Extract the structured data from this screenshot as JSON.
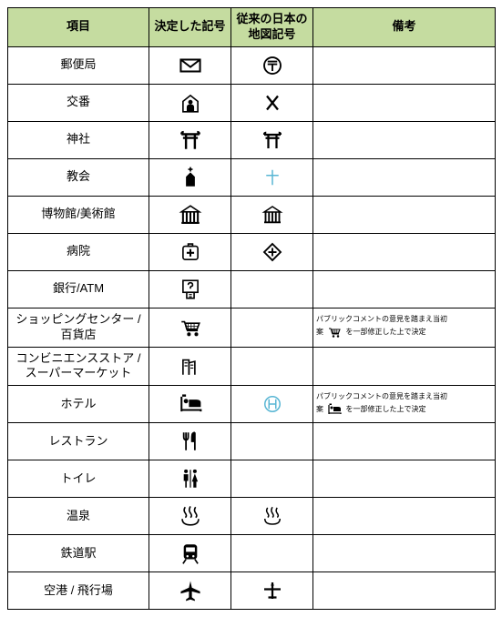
{
  "header": {
    "c1": "項目",
    "c2": "決定した記号",
    "c3": "従来の日本の地図記号",
    "c4": "備考"
  },
  "header_bg": "#c5dca0",
  "border_color": "#000000",
  "icon_color": "#000000",
  "alt_icon_color": "#59b6d4",
  "rows": [
    {
      "item": "郵便局",
      "new": "post-envelope",
      "old": "post-jp",
      "remark": ""
    },
    {
      "item": "交番",
      "new": "koban-new",
      "old": "koban-x",
      "remark": ""
    },
    {
      "item": "神社",
      "new": "torii",
      "old": "torii",
      "remark": ""
    },
    {
      "item": "教会",
      "new": "church",
      "old": "cross",
      "remark": ""
    },
    {
      "item": "博物館/美術館",
      "new": "museum",
      "old": "museum",
      "remark": ""
    },
    {
      "item": "病院",
      "new": "hospital-new",
      "old": "hospital-old",
      "remark": ""
    },
    {
      "item": "銀行/ATM",
      "new": "atm",
      "old": "",
      "remark": ""
    },
    {
      "item": "ショッピングセンター / 百貨店",
      "new": "cart",
      "old": "",
      "remark_text1": "パブリックコメントの意見を踏まえ当初",
      "remark_text2": "案",
      "remark_icon": "cart",
      "remark_text3": "を一部修正した上で決定"
    },
    {
      "item": "コンビニエンスストア / スーパーマーケット",
      "new": "conv",
      "old": "",
      "remark": ""
    },
    {
      "item": "ホテル",
      "new": "hotel",
      "old": "hotel-old",
      "remark_text1": "パブリックコメントの意見を踏まえ当初",
      "remark_text2": "案",
      "remark_icon": "hotel",
      "remark_text3": "を一部修正した上で決定"
    },
    {
      "item": "レストラン",
      "new": "restaurant",
      "old": "",
      "remark": ""
    },
    {
      "item": "トイレ",
      "new": "toilet",
      "old": "",
      "remark": ""
    },
    {
      "item": "温泉",
      "new": "onsen",
      "old": "onsen",
      "remark": ""
    },
    {
      "item": "鉄道駅",
      "new": "train",
      "old": "",
      "remark": ""
    },
    {
      "item": "空港 / 飛行場",
      "new": "airplane",
      "old": "airplane-old",
      "remark": ""
    }
  ]
}
